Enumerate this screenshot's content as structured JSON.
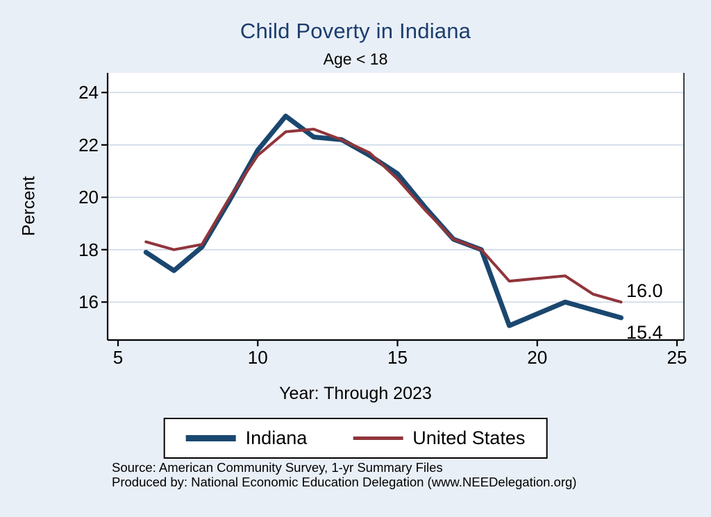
{
  "title": "Child Poverty in Indiana",
  "subtitle": "Age < 18",
  "axes": {
    "y_label": "Percent",
    "x_label": "Year: Through 2023"
  },
  "annotations": [
    {
      "text": "16.0",
      "value": 16.0,
      "series": "United States"
    },
    {
      "text": "15.4",
      "value": 15.4,
      "series": "Indiana"
    }
  ],
  "legend": {
    "items": [
      {
        "label": "Indiana",
        "color": "#1a476f",
        "thickness": 9
      },
      {
        "label": "United States",
        "color": "#90353b",
        "thickness": 5
      }
    ]
  },
  "source_line1": "Source: American Community Survey, 1-yr Summary Files",
  "source_line2": "Produced by: National Economic Education Delegation (www.NEEDelegation.org)",
  "colors": {
    "background": "#e9eff7",
    "plot_bg": "#ffffff",
    "grid": "#ccd8e8",
    "axis": "#000000",
    "title": "#1b3d6e"
  },
  "chart_data": {
    "type": "line",
    "title": "Child Poverty in Indiana",
    "subtitle": "Age < 18",
    "xlabel": "Year: Through 2023",
    "ylabel": "Percent",
    "x": [
      6,
      7,
      8,
      9,
      10,
      11,
      12,
      13,
      14,
      15,
      16,
      17,
      18,
      19,
      21,
      22,
      23
    ],
    "series": [
      {
        "name": "Indiana",
        "color": "#1a476f",
        "width": 7,
        "values": [
          17.9,
          17.2,
          18.1,
          19.9,
          21.8,
          23.1,
          22.3,
          22.2,
          21.6,
          20.9,
          19.6,
          18.4,
          18.0,
          15.1,
          16.0,
          15.7,
          15.4
        ]
      },
      {
        "name": "United States",
        "color": "#90353b",
        "width": 4,
        "values": [
          18.3,
          18.0,
          18.2,
          20.0,
          21.6,
          22.5,
          22.6,
          22.2,
          21.7,
          20.7,
          19.5,
          18.4,
          18.0,
          16.8,
          17.0,
          16.3,
          16.0
        ]
      }
    ],
    "xlim": [
      5,
      25
    ],
    "ylim": [
      14.55,
      24.75
    ],
    "xticks": [
      5,
      10,
      15,
      20,
      25
    ],
    "yticks": [
      16,
      18,
      20,
      22,
      24
    ],
    "grid": "horizontal",
    "legend_position": "bottom"
  }
}
